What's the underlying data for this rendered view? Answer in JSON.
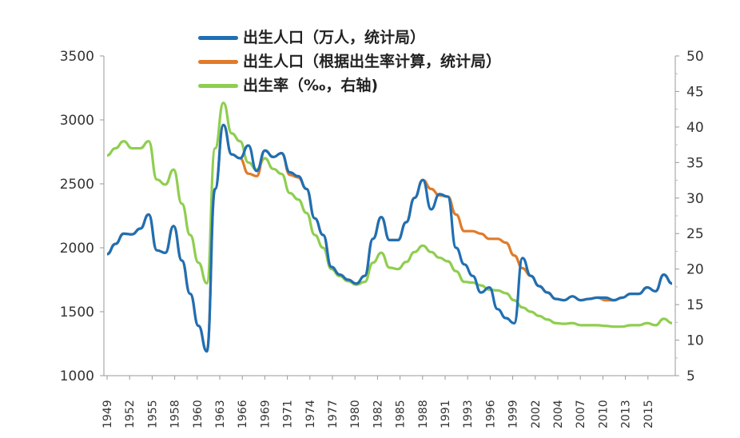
{
  "chart_data": {
    "type": "line",
    "title": "",
    "x": [
      1949,
      1950,
      1951,
      1952,
      1953,
      1954,
      1955,
      1956,
      1957,
      1958,
      1959,
      1960,
      1961,
      1962,
      1963,
      1964,
      1965,
      1966,
      1967,
      1968,
      1969,
      1970,
      1971,
      1972,
      1973,
      1974,
      1975,
      1976,
      1977,
      1978,
      1979,
      1980,
      1981,
      1982,
      1983,
      1984,
      1985,
      1986,
      1987,
      1988,
      1989,
      1990,
      1991,
      1992,
      1993,
      1994,
      1995,
      1996,
      1997,
      1998,
      1999,
      2000,
      2001,
      2002,
      2003,
      2004,
      2005,
      2006,
      2007,
      2008,
      2009,
      2010,
      2011,
      2012,
      2013,
      2014,
      2015,
      2016,
      2017
    ],
    "x_tick_labels": [
      "1949",
      "1952",
      "1955",
      "1958",
      "1960",
      "1963",
      "1966",
      "1969",
      "1971",
      "1974",
      "1977",
      "1980",
      "1982",
      "1985",
      "1988",
      "1991",
      "1993",
      "1996",
      "1999",
      "2002",
      "2004",
      "2007",
      "2010",
      "2013",
      "2015"
    ],
    "y_left": {
      "ylim": [
        1000,
        3500
      ],
      "ticks": [
        "1000",
        "1500",
        "2000",
        "2500",
        "3000",
        "3500"
      ]
    },
    "y_right": {
      "ylim": [
        5,
        50
      ],
      "ticks": [
        "5",
        "10",
        "15",
        "20",
        "25",
        "30",
        "35",
        "40",
        "45",
        "50"
      ]
    },
    "legend_position": "top",
    "series": [
      {
        "name": "出生人口（万人，统计局）",
        "axis": "left",
        "color": "#1f6fb4",
        "values": [
          1950,
          2030,
          2110,
          2105,
          2150,
          2260,
          1980,
          1960,
          2170,
          1900,
          1640,
          1390,
          1190,
          2460,
          2960,
          2730,
          2700,
          2800,
          2600,
          2760,
          2710,
          2740,
          2590,
          2560,
          2460,
          2230,
          2100,
          1850,
          1790,
          1750,
          1720,
          1780,
          2070,
          2240,
          2060,
          2060,
          2200,
          2390,
          2530,
          2300,
          2420,
          2400,
          2000,
          1870,
          1780,
          1650,
          1690,
          1520,
          1450,
          1410,
          1920,
          1780,
          1700,
          1650,
          1600,
          1590,
          1620,
          1590,
          1600,
          1610,
          1610,
          1590,
          1610,
          1640,
          1640,
          1690,
          1660,
          1790,
          1720
        ]
      },
      {
        "name": "出生人口（根据出生率计算，统计局）",
        "axis": "left",
        "color": "#e07b2a",
        "values": [
          1950,
          2030,
          2110,
          2105,
          2150,
          2260,
          1980,
          1960,
          2170,
          1900,
          1640,
          1390,
          1190,
          2460,
          2960,
          2730,
          2700,
          2580,
          2560,
          2760,
          2710,
          2740,
          2570,
          2550,
          2460,
          2230,
          2100,
          1850,
          1790,
          1750,
          1720,
          1780,
          2070,
          2240,
          2060,
          2060,
          2200,
          2390,
          2530,
          2460,
          2410,
          2400,
          2260,
          2130,
          2130,
          2110,
          2070,
          2070,
          2040,
          1940,
          1840,
          1780,
          1700,
          1650,
          1600,
          1590,
          1620,
          1590,
          1600,
          1610,
          1590,
          1590,
          1610,
          1640,
          1640,
          1690,
          1660,
          1790,
          1720
        ]
      },
      {
        "name": "出生率（‰，右轴)",
        "axis": "right",
        "color": "#8fce4f",
        "values": [
          36,
          37,
          38,
          37,
          37,
          38,
          32.6,
          31.9,
          34,
          29.2,
          24.8,
          20.9,
          18,
          37,
          43.4,
          39.1,
          38,
          35,
          34,
          35.6,
          34.1,
          33.4,
          30.7,
          29.8,
          27.9,
          24.8,
          23,
          20,
          19,
          18.3,
          17.8,
          18.2,
          20.9,
          22.3,
          20.2,
          20,
          21,
          22.4,
          23.3,
          22.4,
          21.6,
          21.1,
          19.7,
          18.2,
          18.1,
          17.7,
          17.1,
          17,
          16.6,
          15.6,
          14.6,
          14,
          13.4,
          12.9,
          12.4,
          12.3,
          12.4,
          12.1,
          12.1,
          12.1,
          12,
          11.9,
          11.9,
          12.1,
          12.1,
          12.4,
          12.1,
          13,
          12.4
        ]
      }
    ]
  }
}
